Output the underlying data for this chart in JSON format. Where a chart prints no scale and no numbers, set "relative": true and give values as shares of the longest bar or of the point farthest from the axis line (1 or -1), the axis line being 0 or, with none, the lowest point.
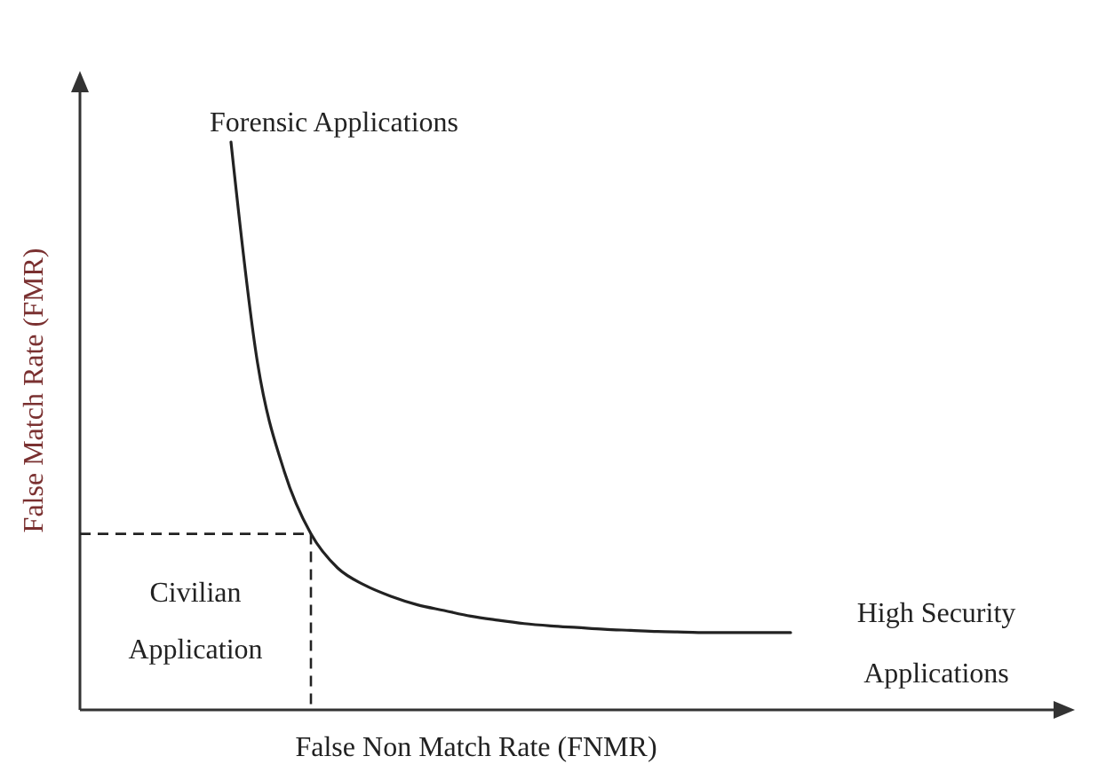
{
  "chart_data": {
    "type": "line",
    "relative": true,
    "xlabel": "False Non Match Rate (FNMR)",
    "ylabel": "False Match Rate (FMR)",
    "categories": [
      null,
      null,
      null,
      null,
      null,
      null,
      null,
      null,
      null,
      null,
      null,
      null,
      null,
      null,
      null,
      null,
      null,
      null,
      null,
      null,
      null,
      null,
      null,
      null,
      null,
      null,
      null,
      null,
      null,
      null,
      null,
      null,
      null,
      null,
      null,
      null,
      null,
      null
    ],
    "series": [
      {
        "color": "#222222",
        "values": [
          null,
          null,
          null,
          null,
          null,
          null,
          1,
          0.61,
          0.42,
          0.31,
          0.25,
          0.22,
          0.2,
          0.185,
          0.175,
          0.165,
          0.158,
          0.152,
          0.148,
          0.145,
          0.142,
          0.14,
          0.138,
          0.137,
          0.136,
          0.136,
          0.136,
          0.136,
          null,
          null,
          null,
          null,
          null,
          null,
          null,
          null,
          null,
          null
        ]
      }
    ],
    "annotations": [
      "Forensic Applications",
      "Civilian Application",
      "High Security Applications"
    ],
    "marker": "none",
    "line_style": "solid"
  }
}
